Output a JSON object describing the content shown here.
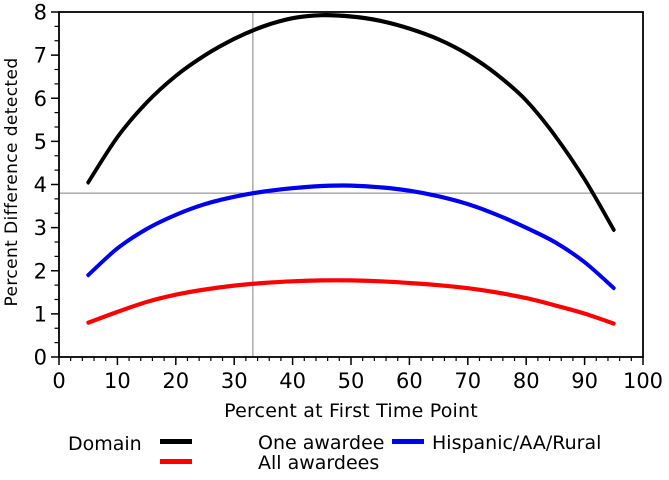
{
  "figure": {
    "background": "#FFFFFF",
    "text_color": "#000000"
  },
  "chart_data": {
    "type": "line",
    "title": "",
    "xlabel": "Percent at First Time Point",
    "ylabel": "Percent Difference detected",
    "xlim": [
      0,
      100
    ],
    "ylim": [
      0,
      8
    ],
    "x_ticks": [
      0,
      10,
      20,
      30,
      40,
      50,
      60,
      70,
      80,
      90,
      100
    ],
    "y_ticks": [
      0,
      1,
      2,
      3,
      4,
      5,
      6,
      7,
      8
    ],
    "x_minor_ticks_between_major": 4,
    "y_minor_ticks_between_major": 2,
    "grid": false,
    "frame": true,
    "reference_lines": {
      "vertical_x": 33.2,
      "horizontal_y": 3.8,
      "color": "#808080"
    },
    "x": [
      5,
      10,
      15,
      20,
      25,
      30,
      35,
      40,
      45,
      50,
      55,
      60,
      65,
      70,
      75,
      80,
      85,
      90,
      95
    ],
    "series": [
      {
        "name": "One awardee",
        "color": "#000000",
        "values": [
          4.05,
          5.1,
          5.9,
          6.52,
          7.0,
          7.38,
          7.67,
          7.86,
          7.93,
          7.9,
          7.8,
          7.62,
          7.37,
          7.02,
          6.55,
          5.95,
          5.12,
          4.12,
          2.95
        ]
      },
      {
        "name": "All awardees",
        "color": "#FF0000",
        "values": [
          0.8,
          1.05,
          1.28,
          1.45,
          1.57,
          1.66,
          1.72,
          1.76,
          1.78,
          1.78,
          1.76,
          1.72,
          1.67,
          1.6,
          1.5,
          1.37,
          1.2,
          1.01,
          0.78
        ]
      },
      {
        "name": "Hispanic/AA/Rural",
        "color": "#0000EE",
        "values": [
          1.9,
          2.52,
          2.97,
          3.3,
          3.55,
          3.72,
          3.84,
          3.92,
          3.97,
          3.98,
          3.94,
          3.86,
          3.73,
          3.55,
          3.3,
          3.0,
          2.66,
          2.2,
          1.6
        ]
      }
    ],
    "legend": {
      "title": "Domain",
      "position": "bottom"
    }
  }
}
